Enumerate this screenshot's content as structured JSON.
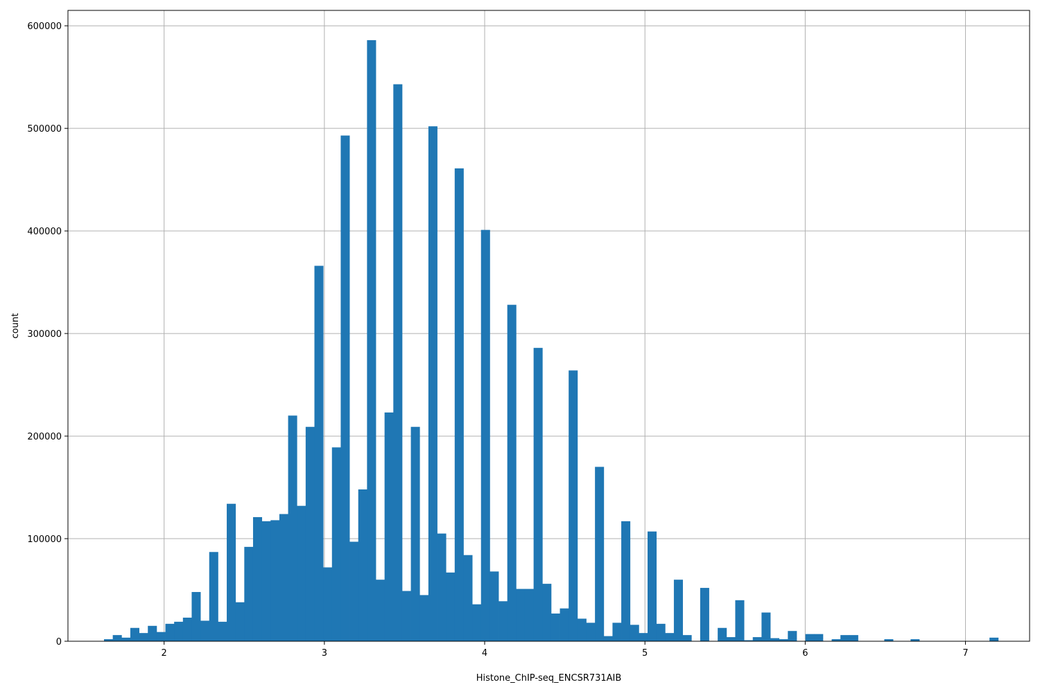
{
  "chart_data": {
    "type": "histogram",
    "title": "",
    "xlabel": "Histone_ChIP-seq_ENCSR731AIB",
    "ylabel": "count",
    "xlim": [
      1.4,
      7.4
    ],
    "ylim": [
      0,
      615000
    ],
    "grid": true,
    "bar_color": "#1f77b4",
    "xticks": [
      2,
      3,
      4,
      5,
      6,
      7
    ],
    "yticks": [
      0,
      100000,
      200000,
      300000,
      400000,
      500000,
      600000
    ],
    "bin_start": 1.625,
    "bin_width": 0.0547,
    "values": [
      2000,
      6000,
      3500,
      13000,
      8000,
      15000,
      9000,
      17000,
      19000,
      23000,
      48000,
      20000,
      87000,
      19000,
      134000,
      38000,
      92000,
      121000,
      117000,
      118000,
      124000,
      220000,
      132000,
      209000,
      366000,
      72000,
      189000,
      493000,
      97000,
      148000,
      586000,
      60000,
      223000,
      543000,
      49000,
      209000,
      45000,
      502000,
      105000,
      67000,
      461000,
      84000,
      36000,
      401000,
      68000,
      39000,
      328000,
      51000,
      51000,
      286000,
      56000,
      27000,
      32000,
      264000,
      22000,
      18000,
      170000,
      5000,
      18000,
      117000,
      16000,
      8000,
      107000,
      17000,
      8000,
      60000,
      6000,
      0,
      52000,
      0,
      13000,
      4000,
      40000,
      1000,
      4000,
      28000,
      3000,
      2000,
      10000,
      0,
      7000,
      7000,
      0,
      2000,
      6000,
      6000,
      0,
      0,
      0,
      2000,
      0,
      0,
      2000,
      0,
      0,
      0,
      0,
      0,
      0,
      0,
      0,
      3500
    ]
  }
}
